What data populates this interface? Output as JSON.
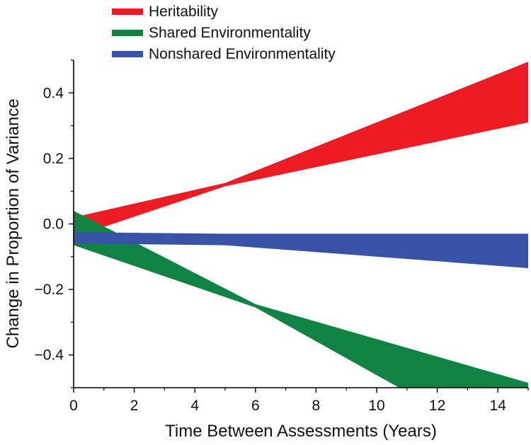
{
  "chart_data": {
    "type": "area",
    "title": "",
    "xlabel": "Time Between Assessments (Years)",
    "ylabel": "Change in Proportion of Variance",
    "xlim": [
      0,
      15
    ],
    "ylim": [
      -0.5,
      0.5
    ],
    "xticks": [
      0,
      2,
      4,
      6,
      8,
      10,
      12,
      14
    ],
    "xtick_labels": [
      "0",
      "2",
      "4",
      "6",
      "8",
      "10",
      "12",
      "14"
    ],
    "yticks": [
      -0.4,
      -0.2,
      0.0,
      0.2,
      0.4
    ],
    "ytick_labels": [
      "−0.4",
      "−0.2",
      "0.0",
      "0.2",
      "0.4"
    ],
    "grid": false,
    "legend_position": "top-left",
    "series": [
      {
        "name": "Heritability",
        "color": "#ED1C24",
        "x": [
          0,
          5,
          15
        ],
        "upper": [
          0.02,
          0.125,
          0.495
        ],
        "lower": [
          -0.04,
          0.115,
          0.31
        ]
      },
      {
        "name": "Shared Environmentality",
        "color": "#0F8341",
        "x": [
          0,
          6,
          15
        ],
        "upper": [
          0.04,
          -0.245,
          -0.485
        ],
        "lower": [
          -0.065,
          -0.255,
          -0.72
        ]
      },
      {
        "name": "Nonshared Environmentality",
        "color": "#3752A6",
        "x": [
          0,
          5,
          15
        ],
        "upper": [
          -0.025,
          -0.03,
          -0.03
        ],
        "lower": [
          -0.06,
          -0.065,
          -0.135
        ]
      }
    ]
  }
}
